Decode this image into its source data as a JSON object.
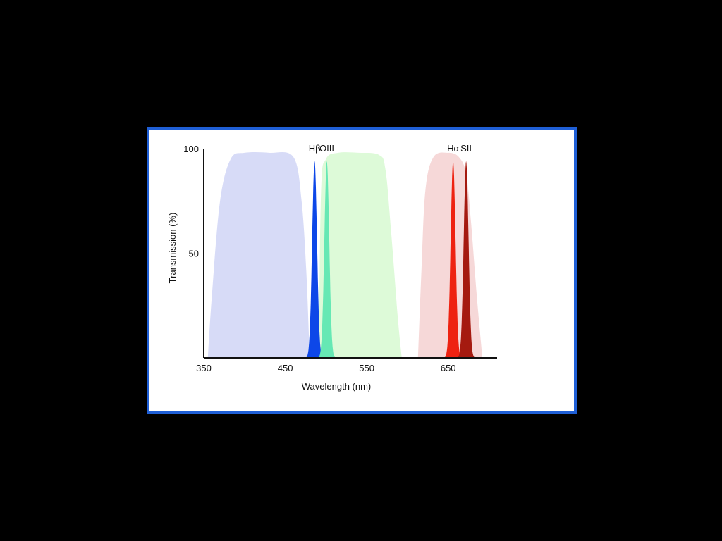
{
  "colors": {
    "background": "#000000",
    "frame_border": "#1f5fd6",
    "panel": "#ffffff"
  },
  "chart_data": {
    "type": "area",
    "xlabel": "Wavelength (nm)",
    "ylabel": "Transmission (%)",
    "xlim": [
      350,
      710
    ],
    "ylim": [
      0,
      100
    ],
    "xticks": [
      350,
      450,
      550,
      650
    ],
    "yticks": [
      50,
      100
    ],
    "grid": false,
    "broadband_filters": [
      {
        "color": "#d7dbf7",
        "x": [
          355,
          360,
          370,
          383,
          400,
          430,
          460,
          470,
          476,
          480
        ],
        "y": [
          0,
          30,
          75,
          95,
          98,
          98,
          96,
          75,
          40,
          0
        ]
      },
      {
        "color": "#ddfad8",
        "x": [
          491,
          494,
          500,
          515,
          540,
          565,
          573,
          580,
          588,
          593
        ],
        "y": [
          0,
          80,
          95,
          98,
          98,
          97,
          90,
          60,
          20,
          0
        ]
      },
      {
        "color": "#f6d8d8",
        "x": [
          613,
          617,
          622,
          632,
          650,
          663,
          672,
          678,
          685,
          692
        ],
        "y": [
          0,
          40,
          80,
          96,
          98,
          96,
          88,
          65,
          30,
          0
        ]
      }
    ],
    "emission_lines": [
      {
        "label": "Hβ",
        "color": "#0d47e8",
        "center": 486,
        "fwhm": 7,
        "peak": 94
      },
      {
        "label": "OIII",
        "color": "#66e8b4",
        "center": 501,
        "fwhm": 7,
        "peak": 94
      },
      {
        "label": "Hα",
        "color": "#ee2211",
        "center": 656,
        "fwhm": 7,
        "peak": 94
      },
      {
        "label": "SII",
        "color": "#a51a10",
        "center": 672,
        "fwhm": 7,
        "peak": 94
      }
    ]
  }
}
